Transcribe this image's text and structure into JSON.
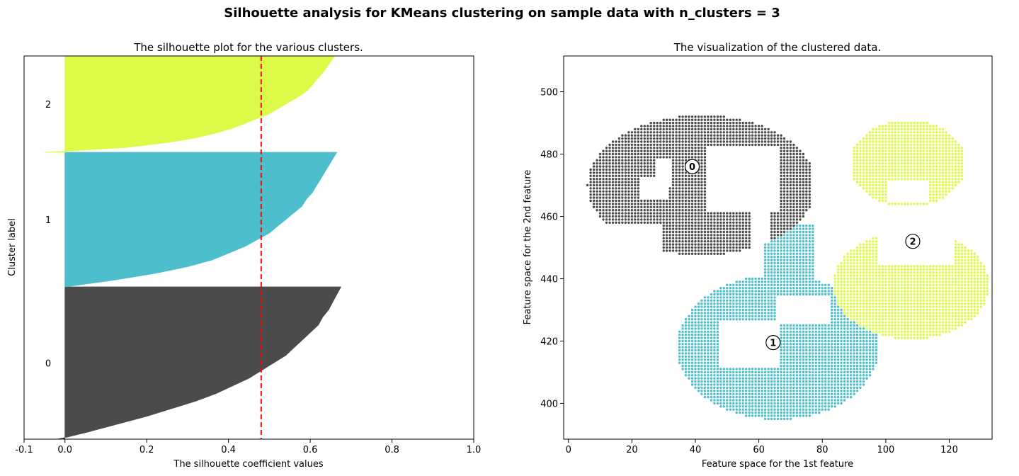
{
  "suptitle": "Silhouette analysis for KMeans clustering on sample data with n_clusters = 3",
  "chart_data": [
    {
      "type": "area",
      "title": "The silhouette plot for the various clusters.",
      "xlabel": "The silhouette coefficient values",
      "ylabel": "Cluster label",
      "xlim": [
        -0.1,
        1.0
      ],
      "xticks": [
        "-0.1",
        "0.0",
        "0.2",
        "0.4",
        "0.6",
        "0.8",
        "1.0"
      ],
      "average_silhouette": 0.48,
      "line_color": "#ff0000",
      "clusters": [
        {
          "label": "0",
          "color": "#4b4b4b",
          "size": 1000,
          "values": [
            [
              0.0,
              -0.02
            ],
            [
              0.01,
              0.0
            ],
            [
              0.05,
              0.06
            ],
            [
              0.1,
              0.13
            ],
            [
              0.15,
              0.2
            ],
            [
              0.2,
              0.26
            ],
            [
              0.25,
              0.32
            ],
            [
              0.3,
              0.37
            ],
            [
              0.35,
              0.41
            ],
            [
              0.4,
              0.45
            ],
            [
              0.45,
              0.48
            ],
            [
              0.5,
              0.51
            ],
            [
              0.55,
              0.54
            ],
            [
              0.6,
              0.56
            ],
            [
              0.65,
              0.58
            ],
            [
              0.7,
              0.6
            ],
            [
              0.75,
              0.62
            ],
            [
              0.8,
              0.63
            ],
            [
              0.85,
              0.645
            ],
            [
              0.9,
              0.655
            ],
            [
              0.95,
              0.665
            ],
            [
              1.0,
              0.675
            ]
          ]
        },
        {
          "label": "1",
          "color": "#4dbecc",
          "size": 1000,
          "values": [
            [
              0.0,
              0.0
            ],
            [
              0.05,
              0.12
            ],
            [
              0.1,
              0.22
            ],
            [
              0.15,
              0.3
            ],
            [
              0.2,
              0.36
            ],
            [
              0.25,
              0.4
            ],
            [
              0.3,
              0.44
            ],
            [
              0.35,
              0.47
            ],
            [
              0.4,
              0.5
            ],
            [
              0.45,
              0.52
            ],
            [
              0.5,
              0.54
            ],
            [
              0.55,
              0.56
            ],
            [
              0.6,
              0.58
            ],
            [
              0.65,
              0.59
            ],
            [
              0.7,
              0.605
            ],
            [
              0.75,
              0.615
            ],
            [
              0.8,
              0.625
            ],
            [
              0.85,
              0.635
            ],
            [
              0.9,
              0.645
            ],
            [
              0.95,
              0.655
            ],
            [
              1.0,
              0.665
            ]
          ]
        },
        {
          "label": "2",
          "color": "#dcfa48",
          "size": 900,
          "values": [
            [
              0.0,
              -0.05
            ],
            [
              0.01,
              0.0
            ],
            [
              0.05,
              0.15
            ],
            [
              0.1,
              0.25
            ],
            [
              0.15,
              0.32
            ],
            [
              0.2,
              0.37
            ],
            [
              0.25,
              0.41
            ],
            [
              0.3,
              0.44
            ],
            [
              0.35,
              0.47
            ],
            [
              0.4,
              0.5
            ],
            [
              0.45,
              0.52
            ],
            [
              0.5,
              0.54
            ],
            [
              0.55,
              0.56
            ],
            [
              0.6,
              0.58
            ],
            [
              0.65,
              0.595
            ],
            [
              0.7,
              0.605
            ],
            [
              0.75,
              0.615
            ],
            [
              0.8,
              0.625
            ],
            [
              0.85,
              0.635
            ],
            [
              1.0,
              0.66
            ]
          ]
        }
      ]
    },
    {
      "type": "scatter",
      "title": "The visualization of the clustered data.",
      "xlabel": "Feature space for the 1st feature",
      "ylabel": "Feature space for the 2nd feature",
      "xlim": [
        -1.5,
        133.5
      ],
      "ylim": [
        388.5,
        511.5
      ],
      "xticks": [
        0,
        20,
        40,
        60,
        80,
        100,
        120
      ],
      "yticks": [
        400,
        420,
        440,
        460,
        480,
        500
      ],
      "colors": {
        "0": "#4b4b4b",
        "1": "#4dbecc",
        "2": "#dcfa48"
      },
      "centers": [
        {
          "label": "0",
          "x": 39,
          "y": 476
        },
        {
          "label": "1",
          "x": 64.5,
          "y": 419.5
        },
        {
          "label": "2",
          "x": 108.5,
          "y": 452
        }
      ],
      "clusters": [
        {
          "label": "0",
          "shape": "ring",
          "cx": 42,
          "cy": 470,
          "r_outer": 36,
          "r_inner": 15,
          "y_min": 448,
          "y_max": 506,
          "cut_right_x": 76,
          "hole_box": [
            20,
            50,
            456,
            472
          ]
        },
        {
          "label": "1",
          "shape": "blob",
          "cx": 66,
          "cy": 418,
          "rx": 30,
          "ry": 22,
          "y_min": 394,
          "y_max": 457,
          "x_min": 32,
          "x_max": 97
        },
        {
          "label": "2",
          "shape": "blob",
          "upper_box": [
            90,
            124,
            464,
            490
          ],
          "lower_box": [
            84,
            132,
            421,
            455
          ]
        }
      ]
    }
  ]
}
